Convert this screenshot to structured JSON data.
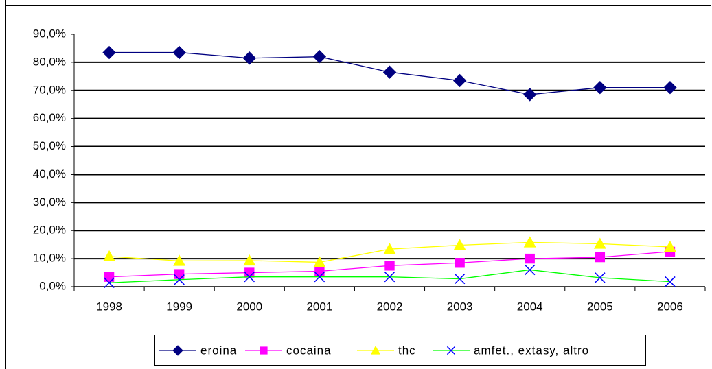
{
  "chart_data": {
    "type": "line",
    "categories": [
      "1998",
      "1999",
      "2000",
      "2001",
      "2002",
      "2003",
      "2004",
      "2005",
      "2006"
    ],
    "series": [
      {
        "name": "eroina",
        "color": "#000080",
        "marker_color": "#000080",
        "marker": "diamond",
        "values": [
          83.5,
          83.5,
          81.5,
          82,
          76.5,
          73.5,
          68.5,
          71,
          71
        ]
      },
      {
        "name": "cocaina",
        "color": "#ff00ff",
        "marker_color": "#ff00ff",
        "marker": "square",
        "values": [
          3.5,
          4.5,
          5,
          5.5,
          7.5,
          8.5,
          10,
          10.5,
          12.5
        ]
      },
      {
        "name": "thc",
        "color": "#ffff00",
        "marker_color": "#ffff00",
        "marker": "triangle",
        "values": [
          10.8,
          9.2,
          9.3,
          8.7,
          13.4,
          14.8,
          15.8,
          15.3,
          14.2
        ]
      },
      {
        "name": "amfet., extasy, altro",
        "color": "#00ff00",
        "marker_color": "#0000ff",
        "marker": "x",
        "values": [
          1.4,
          2.5,
          3.5,
          3.5,
          3.5,
          2.8,
          6,
          3.2,
          1.8
        ]
      }
    ],
    "ylim": [
      0,
      90
    ],
    "yticks": [
      {
        "value": 0,
        "label": "0,0%"
      },
      {
        "value": 10,
        "label": "10,0%"
      },
      {
        "value": 20,
        "label": "20,0%"
      },
      {
        "value": 30,
        "label": "30,0%"
      },
      {
        "value": 40,
        "label": "40,0%"
      },
      {
        "value": 50,
        "label": "50,0%"
      },
      {
        "value": 60,
        "label": "60,0%"
      },
      {
        "value": 70,
        "label": "70,0%"
      },
      {
        "value": 80,
        "label": "80,0%"
      },
      {
        "value": 90,
        "label": "90,0%"
      }
    ],
    "grid": true,
    "legend": "bottom"
  }
}
